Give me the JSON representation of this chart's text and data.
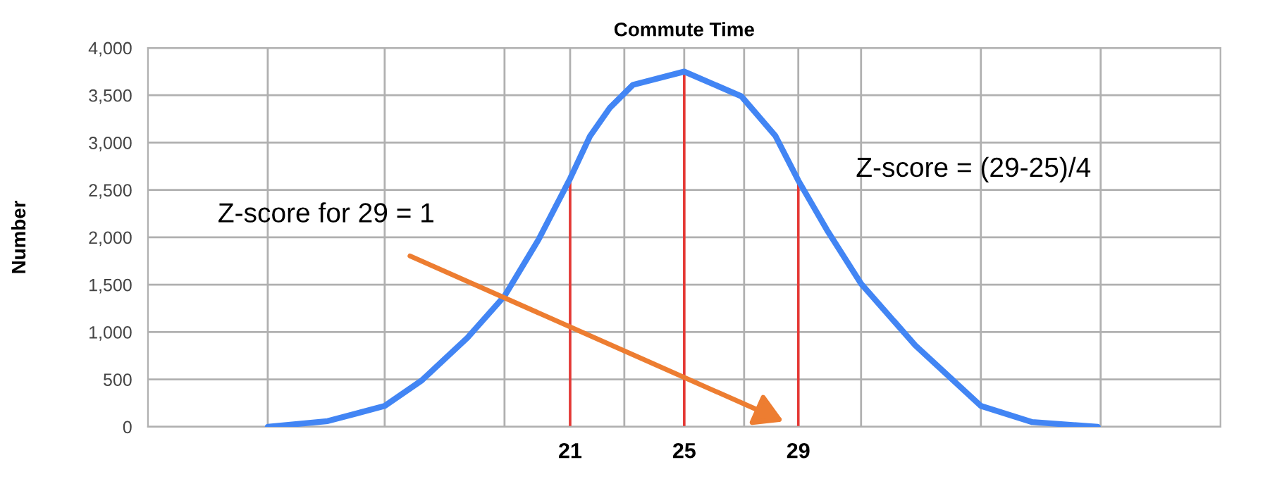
{
  "chart_data": {
    "type": "line",
    "title": "Commute Time",
    "ylabel": "Number",
    "x": [
      10.4,
      12.5,
      14.5,
      15.8,
      17.4,
      18.7,
      19.9,
      21,
      21.7,
      22.4,
      23.2,
      25,
      27,
      28.2,
      29,
      30,
      31.2,
      33.1,
      35.4,
      37.2,
      39.5
    ],
    "series": [
      {
        "color": "#4285f4",
        "values": [
          0,
          60,
          220,
          490,
          940,
          1380,
          1980,
          2620,
          3070,
          3370,
          3610,
          3750,
          3490,
          3070,
          2600,
          2080,
          1510,
          860,
          220,
          50,
          0
        ]
      }
    ],
    "xlim": [
      6.2,
      43.8
    ],
    "xticks": [
      {
        "value": 10.4,
        "label": null
      },
      {
        "value": 14.5,
        "label": null
      },
      {
        "value": 18.7,
        "label": null
      },
      21,
      {
        "value": 22.9,
        "label": null
      },
      25,
      {
        "value": 27.1,
        "label": null
      },
      29,
      {
        "value": 31.2,
        "label": null
      },
      {
        "value": 35.4,
        "label": null
      },
      {
        "value": 39.6,
        "label": null
      }
    ],
    "ylim": [
      0,
      4000
    ],
    "yticks": [
      0,
      500,
      {
        "value": 1000,
        "label": "1,000"
      },
      {
        "value": 1500,
        "label": "1,500"
      },
      {
        "value": 2000,
        "label": "2,000"
      },
      {
        "value": 2500,
        "label": "2,500"
      },
      {
        "value": 3000,
        "label": "3,000"
      },
      {
        "value": 3500,
        "label": "3,500"
      },
      {
        "value": 4000,
        "label": "4,000"
      }
    ],
    "grid": true,
    "legend": false,
    "marker": "none",
    "line_style": "solid",
    "ref_lines": [
      {
        "axis": "x",
        "value": 21,
        "color": "#e53935"
      },
      {
        "axis": "x",
        "value": 25,
        "color": "#e53935"
      },
      {
        "axis": "x",
        "value": 29,
        "color": "#e53935"
      }
    ],
    "annotations": [
      "Z-score for 29 = 1",
      "Z-score = (29-25)/4"
    ]
  }
}
